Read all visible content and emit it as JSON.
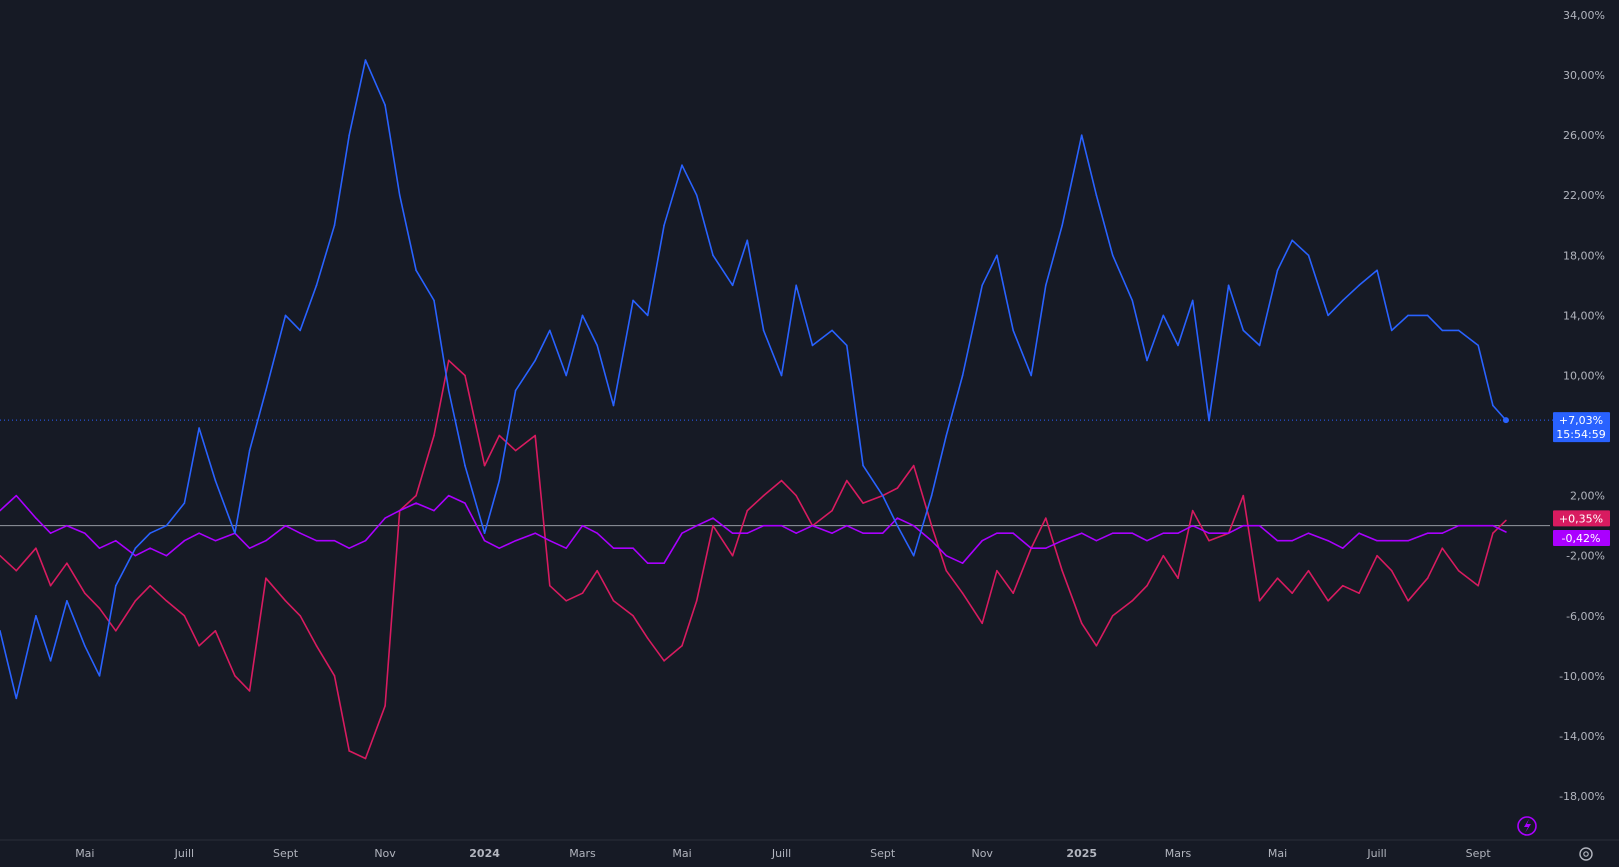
{
  "chart_data": {
    "type": "line",
    "title": "",
    "xlabel": "",
    "ylabel": "",
    "y_unit": "%",
    "ylim": [
      -21,
      35
    ],
    "y_ticks": [
      {
        "value": 34,
        "label": "34,00%"
      },
      {
        "value": 30,
        "label": "30,00%"
      },
      {
        "value": 26,
        "label": "26,00%"
      },
      {
        "value": 22,
        "label": "22,00%"
      },
      {
        "value": 18,
        "label": "18,00%"
      },
      {
        "value": 14,
        "label": "14,00%"
      },
      {
        "value": 10,
        "label": "10,00%"
      },
      {
        "value": 2,
        "label": "2,00%"
      },
      {
        "value": -2,
        "label": "-2,00%"
      },
      {
        "value": -6,
        "label": "-6,00%"
      },
      {
        "value": -10,
        "label": "-10,00%"
      },
      {
        "value": -14,
        "label": "-14,00%"
      },
      {
        "value": -18,
        "label": "-18,00%"
      }
    ],
    "x_ticks": [
      {
        "date": "2023-05-01",
        "label": "Mai",
        "bold": false
      },
      {
        "date": "2023-07-01",
        "label": "Juill",
        "bold": false
      },
      {
        "date": "2023-09-01",
        "label": "Sept",
        "bold": false
      },
      {
        "date": "2023-11-01",
        "label": "Nov",
        "bold": false
      },
      {
        "date": "2024-01-01",
        "label": "2024",
        "bold": true
      },
      {
        "date": "2024-03-01",
        "label": "Mars",
        "bold": false
      },
      {
        "date": "2024-05-01",
        "label": "Mai",
        "bold": false
      },
      {
        "date": "2024-07-01",
        "label": "Juill",
        "bold": false
      },
      {
        "date": "2024-09-01",
        "label": "Sept",
        "bold": false
      },
      {
        "date": "2024-11-01",
        "label": "Nov",
        "bold": false
      },
      {
        "date": "2025-01-01",
        "label": "2025",
        "bold": true
      },
      {
        "date": "2025-03-01",
        "label": "Mars",
        "bold": false
      },
      {
        "date": "2025-05-01",
        "label": "Mai",
        "bold": false
      },
      {
        "date": "2025-07-01",
        "label": "Juill",
        "bold": false
      },
      {
        "date": "2025-09-01",
        "label": "Sept",
        "bold": false
      }
    ],
    "x_range": [
      "2023-03-10",
      "2025-10-15"
    ],
    "zero_line": 0,
    "series": [
      {
        "color": "#2962ff",
        "last_label": "+7,03%",
        "countdown": "15:54:59",
        "x": [
          "2023-03-10",
          "2023-03-20",
          "2023-04-01",
          "2023-04-10",
          "2023-04-20",
          "2023-05-01",
          "2023-05-10",
          "2023-05-20",
          "2023-06-01",
          "2023-06-10",
          "2023-06-20",
          "2023-07-01",
          "2023-07-10",
          "2023-07-20",
          "2023-08-01",
          "2023-08-10",
          "2023-08-20",
          "2023-09-01",
          "2023-09-10",
          "2023-09-20",
          "2023-10-01",
          "2023-10-10",
          "2023-10-20",
          "2023-11-01",
          "2023-11-10",
          "2023-11-20",
          "2023-12-01",
          "2023-12-10",
          "2023-12-20",
          "2024-01-01",
          "2024-01-10",
          "2024-01-20",
          "2024-02-01",
          "2024-02-10",
          "2024-02-20",
          "2024-03-01",
          "2024-03-10",
          "2024-03-20",
          "2024-04-01",
          "2024-04-10",
          "2024-04-20",
          "2024-05-01",
          "2024-05-10",
          "2024-05-20",
          "2024-06-01",
          "2024-06-10",
          "2024-06-20",
          "2024-07-01",
          "2024-07-10",
          "2024-07-20",
          "2024-08-01",
          "2024-08-10",
          "2024-08-20",
          "2024-09-01",
          "2024-09-10",
          "2024-09-20",
          "2024-10-01",
          "2024-10-10",
          "2024-10-20",
          "2024-11-01",
          "2024-11-10",
          "2024-11-20",
          "2024-12-01",
          "2024-12-10",
          "2024-12-20",
          "2025-01-01",
          "2025-01-10",
          "2025-01-20",
          "2025-02-01",
          "2025-02-10",
          "2025-02-20",
          "2025-03-01",
          "2025-03-10",
          "2025-03-20",
          "2025-04-01",
          "2025-04-10",
          "2025-04-20",
          "2025-05-01",
          "2025-05-10",
          "2025-05-20",
          "2025-06-01",
          "2025-06-10",
          "2025-06-20",
          "2025-07-01",
          "2025-07-10",
          "2025-07-20",
          "2025-08-01",
          "2025-08-10",
          "2025-08-20",
          "2025-09-01",
          "2025-09-10",
          "2025-09-18"
        ],
        "y": [
          -7.0,
          -11.5,
          -6.0,
          -9.0,
          -5.0,
          -8.0,
          -10.0,
          -4.0,
          -1.5,
          -0.5,
          0.0,
          1.5,
          6.5,
          3.0,
          -0.5,
          5.0,
          9.0,
          14.0,
          13.0,
          16.0,
          20.0,
          26.0,
          31.0,
          28.0,
          22.0,
          17.0,
          15.0,
          9.0,
          4.0,
          -0.5,
          3.0,
          9.0,
          11.0,
          13.0,
          10.0,
          14.0,
          12.0,
          8.0,
          15.0,
          14.0,
          20.0,
          24.0,
          22.0,
          18.0,
          16.0,
          19.0,
          13.0,
          10.0,
          16.0,
          12.0,
          13.0,
          12.0,
          4.0,
          2.0,
          0.0,
          -2.0,
          2.0,
          6.0,
          10.0,
          16.0,
          18.0,
          13.0,
          10.0,
          16.0,
          20.0,
          26.0,
          22.0,
          18.0,
          15.0,
          11.0,
          14.0,
          12.0,
          15.0,
          7.0,
          16.0,
          13.0,
          12.0,
          17.0,
          19.0,
          18.0,
          14.0,
          15.0,
          16.0,
          17.0,
          13.0,
          14.0,
          14.0,
          13.0,
          13.0,
          12.0,
          8.0,
          7.03
        ]
      },
      {
        "color": "#d81b60",
        "last_label": "+0,35%",
        "x": [
          "2023-03-10",
          "2023-03-20",
          "2023-04-01",
          "2023-04-10",
          "2023-04-20",
          "2023-05-01",
          "2023-05-10",
          "2023-05-20",
          "2023-06-01",
          "2023-06-10",
          "2023-06-20",
          "2023-07-01",
          "2023-07-10",
          "2023-07-20",
          "2023-08-01",
          "2023-08-10",
          "2023-08-20",
          "2023-09-01",
          "2023-09-10",
          "2023-09-20",
          "2023-10-01",
          "2023-10-10",
          "2023-10-20",
          "2023-11-01",
          "2023-11-10",
          "2023-11-20",
          "2023-12-01",
          "2023-12-10",
          "2023-12-20",
          "2024-01-01",
          "2024-01-10",
          "2024-01-20",
          "2024-02-01",
          "2024-02-10",
          "2024-02-20",
          "2024-03-01",
          "2024-03-10",
          "2024-03-20",
          "2024-04-01",
          "2024-04-10",
          "2024-04-20",
          "2024-05-01",
          "2024-05-10",
          "2024-05-20",
          "2024-06-01",
          "2024-06-10",
          "2024-06-20",
          "2024-07-01",
          "2024-07-10",
          "2024-07-20",
          "2024-08-01",
          "2024-08-10",
          "2024-08-20",
          "2024-09-01",
          "2024-09-10",
          "2024-09-20",
          "2024-10-01",
          "2024-10-10",
          "2024-10-20",
          "2024-11-01",
          "2024-11-10",
          "2024-11-20",
          "2024-12-01",
          "2024-12-10",
          "2024-12-20",
          "2025-01-01",
          "2025-01-10",
          "2025-01-20",
          "2025-02-01",
          "2025-02-10",
          "2025-02-20",
          "2025-03-01",
          "2025-03-10",
          "2025-03-20",
          "2025-04-01",
          "2025-04-10",
          "2025-04-20",
          "2025-05-01",
          "2025-05-10",
          "2025-05-20",
          "2025-06-01",
          "2025-06-10",
          "2025-06-20",
          "2025-07-01",
          "2025-07-10",
          "2025-07-20",
          "2025-08-01",
          "2025-08-10",
          "2025-08-20",
          "2025-09-01",
          "2025-09-10",
          "2025-09-18"
        ],
        "y": [
          -2.0,
          -3.0,
          -1.5,
          -4.0,
          -2.5,
          -4.5,
          -5.5,
          -7.0,
          -5.0,
          -4.0,
          -5.0,
          -6.0,
          -8.0,
          -7.0,
          -10.0,
          -11.0,
          -3.5,
          -5.0,
          -6.0,
          -8.0,
          -10.0,
          -15.0,
          -15.5,
          -12.0,
          1.0,
          2.0,
          6.0,
          11.0,
          10.0,
          4.0,
          6.0,
          5.0,
          6.0,
          -4.0,
          -5.0,
          -4.5,
          -3.0,
          -5.0,
          -6.0,
          -7.5,
          -9.0,
          -8.0,
          -5.0,
          0.0,
          -2.0,
          1.0,
          2.0,
          3.0,
          2.0,
          0.0,
          1.0,
          3.0,
          1.5,
          2.0,
          2.5,
          4.0,
          0.0,
          -3.0,
          -4.5,
          -6.5,
          -3.0,
          -4.5,
          -1.5,
          0.5,
          -3.0,
          -6.5,
          -8.0,
          -6.0,
          -5.0,
          -4.0,
          -2.0,
          -3.5,
          1.0,
          -1.0,
          -0.5,
          2.0,
          -5.0,
          -3.5,
          -4.5,
          -3.0,
          -5.0,
          -4.0,
          -4.5,
          -2.0,
          -3.0,
          -5.0,
          -3.5,
          -1.5,
          -3.0,
          -4.0,
          -0.5,
          0.35
        ]
      },
      {
        "color": "#aa00ff",
        "last_label": "-0,42%",
        "x": [
          "2023-03-10",
          "2023-03-20",
          "2023-04-01",
          "2023-04-10",
          "2023-04-20",
          "2023-05-01",
          "2023-05-10",
          "2023-05-20",
          "2023-06-01",
          "2023-06-10",
          "2023-06-20",
          "2023-07-01",
          "2023-07-10",
          "2023-07-20",
          "2023-08-01",
          "2023-08-10",
          "2023-08-20",
          "2023-09-01",
          "2023-09-10",
          "2023-09-20",
          "2023-10-01",
          "2023-10-10",
          "2023-10-20",
          "2023-11-01",
          "2023-11-10",
          "2023-11-20",
          "2023-12-01",
          "2023-12-10",
          "2023-12-20",
          "2024-01-01",
          "2024-01-10",
          "2024-01-20",
          "2024-02-01",
          "2024-02-10",
          "2024-02-20",
          "2024-03-01",
          "2024-03-10",
          "2024-03-20",
          "2024-04-01",
          "2024-04-10",
          "2024-04-20",
          "2024-05-01",
          "2024-05-10",
          "2024-05-20",
          "2024-06-01",
          "2024-06-10",
          "2024-06-20",
          "2024-07-01",
          "2024-07-10",
          "2024-07-20",
          "2024-08-01",
          "2024-08-10",
          "2024-08-20",
          "2024-09-01",
          "2024-09-10",
          "2024-09-20",
          "2024-10-01",
          "2024-10-10",
          "2024-10-20",
          "2024-11-01",
          "2024-11-10",
          "2024-11-20",
          "2024-12-01",
          "2024-12-10",
          "2024-12-20",
          "2025-01-01",
          "2025-01-10",
          "2025-01-20",
          "2025-02-01",
          "2025-02-10",
          "2025-02-20",
          "2025-03-01",
          "2025-03-10",
          "2025-03-20",
          "2025-04-01",
          "2025-04-10",
          "2025-04-20",
          "2025-05-01",
          "2025-05-10",
          "2025-05-20",
          "2025-06-01",
          "2025-06-10",
          "2025-06-20",
          "2025-07-01",
          "2025-07-10",
          "2025-07-20",
          "2025-08-01",
          "2025-08-10",
          "2025-08-20",
          "2025-09-01",
          "2025-09-10",
          "2025-09-18"
        ],
        "y": [
          1.0,
          2.0,
          0.5,
          -0.5,
          0.0,
          -0.5,
          -1.5,
          -1.0,
          -2.0,
          -1.5,
          -2.0,
          -1.0,
          -0.5,
          -1.0,
          -0.5,
          -1.5,
          -1.0,
          0.0,
          -0.5,
          -1.0,
          -1.0,
          -1.5,
          -1.0,
          0.5,
          1.0,
          1.5,
          1.0,
          2.0,
          1.5,
          -1.0,
          -1.5,
          -1.0,
          -0.5,
          -1.0,
          -1.5,
          0.0,
          -0.5,
          -1.5,
          -1.5,
          -2.5,
          -2.5,
          -0.5,
          0.0,
          0.5,
          -0.5,
          -0.5,
          0.0,
          0.0,
          -0.5,
          0.0,
          -0.5,
          0.0,
          -0.5,
          -0.5,
          0.5,
          0.0,
          -1.0,
          -2.0,
          -2.5,
          -1.0,
          -0.5,
          -0.5,
          -1.5,
          -1.5,
          -1.0,
          -0.5,
          -1.0,
          -0.5,
          -0.5,
          -1.0,
          -0.5,
          -0.5,
          0.0,
          -0.5,
          -0.5,
          0.0,
          0.0,
          -1.0,
          -1.0,
          -0.5,
          -1.0,
          -1.5,
          -0.5,
          -1.0,
          -1.0,
          -1.0,
          -0.5,
          -0.5,
          0.0,
          0.0,
          0.0,
          -0.42
        ]
      }
    ]
  }
}
